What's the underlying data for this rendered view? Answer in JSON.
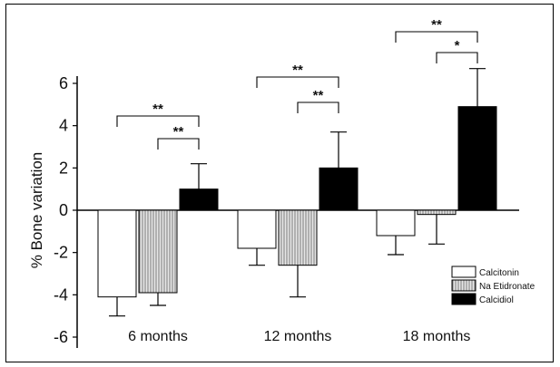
{
  "chart_data": {
    "type": "bar",
    "ylabel": "% Bone variation",
    "ylim": [
      -6,
      6
    ],
    "yticks": [
      "-6",
      "-4",
      "-2",
      "0",
      "2",
      "4",
      "6"
    ],
    "categories": [
      "6 months",
      "12 months",
      "18 months"
    ],
    "series": [
      {
        "name": "Calcitonin",
        "values": [
          -4.1,
          -1.8,
          -1.2
        ],
        "err": [
          0.9,
          0.8,
          0.9
        ],
        "fill": "#ffffff",
        "pattern": "none"
      },
      {
        "name": "Na Etidronate",
        "values": [
          -3.9,
          -2.6,
          -0.2
        ],
        "err": [
          0.6,
          1.5,
          1.4
        ],
        "fill": "#d9d9d9",
        "pattern": "vertical-stripes"
      },
      {
        "name": "Calcidiol",
        "values": [
          1.0,
          2.0,
          4.9
        ],
        "err": [
          1.2,
          1.7,
          1.8
        ],
        "fill": "#000000",
        "pattern": "none"
      }
    ],
    "significance": [
      {
        "category": "6 months",
        "from": "Calcitonin",
        "to": "Calcidiol",
        "label": "**"
      },
      {
        "category": "6 months",
        "from": "Na Etidronate",
        "to": "Calcidiol",
        "label": "**"
      },
      {
        "category": "12 months",
        "from": "Calcitonin",
        "to": "Calcidiol",
        "label": "**"
      },
      {
        "category": "12 months",
        "from": "Na Etidronate",
        "to": "Calcidiol",
        "label": "**"
      },
      {
        "category": "18 months",
        "from": "Calcitonin",
        "to": "Calcidiol",
        "label": "**"
      },
      {
        "category": "18 months",
        "from": "Na Etidronate",
        "to": "Calcidiol",
        "label": "*"
      }
    ],
    "legend": {
      "position": "bottom-right"
    },
    "grid": false
  }
}
